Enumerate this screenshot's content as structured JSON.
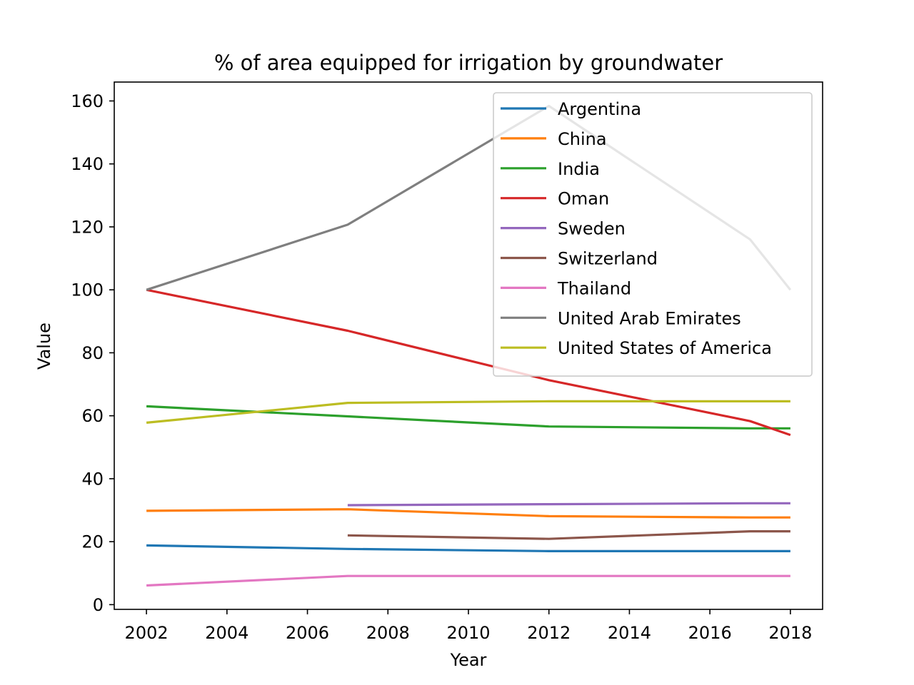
{
  "chart_data": {
    "type": "line",
    "title": "% of area equipped for irrigation by groundwater",
    "xlabel": "Year",
    "ylabel": "Value",
    "xlim": [
      2001.2,
      2018.8
    ],
    "ylim": [
      -1.5,
      166
    ],
    "xticks": [
      2002,
      2004,
      2006,
      2008,
      2010,
      2012,
      2014,
      2016,
      2018
    ],
    "yticks": [
      0,
      20,
      40,
      60,
      80,
      100,
      120,
      140,
      160
    ],
    "grid": false,
    "legend_position": "top-right",
    "series": [
      {
        "name": "Argentina",
        "color": "#1f77b4",
        "x": [
          2002,
          2007,
          2012,
          2017,
          2018
        ],
        "y": [
          18.8,
          17.7,
          17.0,
          17.0,
          17.0
        ]
      },
      {
        "name": "China",
        "color": "#ff7f0e",
        "x": [
          2002,
          2007,
          2012,
          2017,
          2018
        ],
        "y": [
          29.8,
          30.3,
          28.1,
          27.7,
          27.7
        ]
      },
      {
        "name": "India",
        "color": "#2ca02c",
        "x": [
          2002,
          2007,
          2012,
          2017,
          2018
        ],
        "y": [
          63.0,
          59.8,
          56.6,
          56.0,
          56.0
        ]
      },
      {
        "name": "Oman",
        "color": "#d62728",
        "x": [
          2002,
          2007,
          2012,
          2017,
          2018
        ],
        "y": [
          100.0,
          87.0,
          71.3,
          58.3,
          53.9
        ]
      },
      {
        "name": "Sweden",
        "color": "#9467bd",
        "x": [
          2007,
          2012,
          2017,
          2018
        ],
        "y": [
          31.6,
          31.9,
          32.2,
          32.2
        ]
      },
      {
        "name": "Switzerland",
        "color": "#8c564b",
        "x": [
          2007,
          2012,
          2017,
          2018
        ],
        "y": [
          22.0,
          20.9,
          23.3,
          23.3
        ]
      },
      {
        "name": "Thailand",
        "color": "#e377c2",
        "x": [
          2002,
          2007,
          2012,
          2017,
          2018
        ],
        "y": [
          6.1,
          9.1,
          9.1,
          9.1,
          9.1
        ]
      },
      {
        "name": "United Arab Emirates",
        "color": "#7f7f7f",
        "x": [
          2002,
          2007,
          2012,
          2017,
          2018
        ],
        "y": [
          100.0,
          120.7,
          158.4,
          116.0,
          100.0
        ]
      },
      {
        "name": "United States of America",
        "color": "#bcbd22",
        "x": [
          2002,
          2007,
          2012,
          2017,
          2018
        ],
        "y": [
          57.8,
          64.1,
          64.6,
          64.6,
          64.6
        ]
      }
    ]
  }
}
